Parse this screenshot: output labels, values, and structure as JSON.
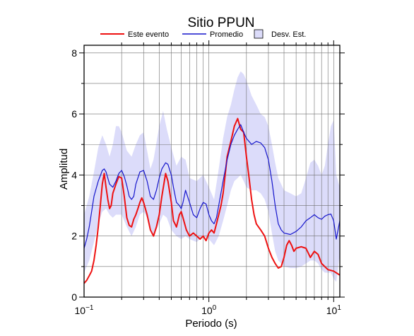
{
  "chart_data": {
    "type": "line",
    "title": "Sitio PPUN",
    "xlabel": "Periodo (s)",
    "ylabel": "Amplitud",
    "xscale": "log",
    "xlim": [
      0.1,
      11.2
    ],
    "ylim": [
      0,
      8.25
    ],
    "grid": true,
    "legend_position": "top",
    "x_ticks": [
      {
        "value": 0.1,
        "base": "10",
        "exp": "−1"
      },
      {
        "value": 1,
        "base": "10",
        "exp": "0"
      },
      {
        "value": 10,
        "base": "10",
        "exp": "1"
      }
    ],
    "y_ticks": [
      0,
      2,
      4,
      6,
      8
    ],
    "legend": {
      "este": "Este evento",
      "promedio": "Promedio",
      "desv": "Desv. Est."
    },
    "colors": {
      "este": "#ee1111",
      "promedio": "#1515cc",
      "desv": "#dcdcfa"
    },
    "series": [
      {
        "name": "Este evento",
        "points": [
          [
            0.1,
            0.45
          ],
          [
            0.105,
            0.55
          ],
          [
            0.11,
            0.7
          ],
          [
            0.115,
            0.85
          ],
          [
            0.12,
            1.2
          ],
          [
            0.125,
            1.7
          ],
          [
            0.13,
            2.3
          ],
          [
            0.135,
            3.0
          ],
          [
            0.14,
            3.7
          ],
          [
            0.145,
            4.05
          ],
          [
            0.15,
            3.6
          ],
          [
            0.155,
            3.2
          ],
          [
            0.16,
            2.9
          ],
          [
            0.165,
            3.0
          ],
          [
            0.17,
            3.4
          ],
          [
            0.18,
            3.7
          ],
          [
            0.19,
            3.95
          ],
          [
            0.2,
            3.9
          ],
          [
            0.21,
            3.3
          ],
          [
            0.22,
            2.6
          ],
          [
            0.23,
            2.35
          ],
          [
            0.24,
            2.3
          ],
          [
            0.25,
            2.55
          ],
          [
            0.26,
            2.7
          ],
          [
            0.27,
            2.9
          ],
          [
            0.28,
            3.1
          ],
          [
            0.29,
            3.25
          ],
          [
            0.3,
            3.1
          ],
          [
            0.32,
            2.7
          ],
          [
            0.34,
            2.2
          ],
          [
            0.36,
            2.0
          ],
          [
            0.38,
            2.3
          ],
          [
            0.4,
            2.7
          ],
          [
            0.42,
            3.3
          ],
          [
            0.45,
            4.05
          ],
          [
            0.47,
            3.8
          ],
          [
            0.5,
            3.1
          ],
          [
            0.52,
            2.5
          ],
          [
            0.55,
            2.3
          ],
          [
            0.58,
            2.7
          ],
          [
            0.6,
            2.8
          ],
          [
            0.62,
            2.6
          ],
          [
            0.66,
            2.2
          ],
          [
            0.7,
            2.0
          ],
          [
            0.75,
            2.1
          ],
          [
            0.8,
            2.0
          ],
          [
            0.85,
            1.9
          ],
          [
            0.9,
            2.0
          ],
          [
            0.95,
            1.85
          ],
          [
            1.0,
            2.1
          ],
          [
            1.05,
            2.2
          ],
          [
            1.1,
            2.1
          ],
          [
            1.15,
            2.4
          ],
          [
            1.2,
            2.7
          ],
          [
            1.25,
            3.0
          ],
          [
            1.3,
            3.4
          ],
          [
            1.35,
            4.0
          ],
          [
            1.4,
            4.6
          ],
          [
            1.5,
            5.1
          ],
          [
            1.6,
            5.6
          ],
          [
            1.7,
            5.85
          ],
          [
            1.8,
            5.5
          ],
          [
            1.9,
            5.4
          ],
          [
            2.0,
            4.6
          ],
          [
            2.1,
            3.9
          ],
          [
            2.2,
            3.2
          ],
          [
            2.3,
            2.7
          ],
          [
            2.4,
            2.4
          ],
          [
            2.6,
            2.2
          ],
          [
            2.8,
            2.0
          ],
          [
            3.0,
            1.6
          ],
          [
            3.2,
            1.3
          ],
          [
            3.4,
            1.1
          ],
          [
            3.6,
            0.95
          ],
          [
            3.8,
            1.0
          ],
          [
            4.0,
            1.3
          ],
          [
            4.2,
            1.7
          ],
          [
            4.4,
            1.85
          ],
          [
            4.6,
            1.7
          ],
          [
            4.8,
            1.5
          ],
          [
            5.0,
            1.6
          ],
          [
            5.5,
            1.65
          ],
          [
            6.0,
            1.6
          ],
          [
            6.5,
            1.3
          ],
          [
            7.0,
            1.5
          ],
          [
            7.5,
            1.4
          ],
          [
            8.0,
            1.1
          ],
          [
            9.0,
            0.9
          ],
          [
            10.0,
            0.85
          ],
          [
            11.2,
            0.72
          ]
        ]
      },
      {
        "name": "Promedio",
        "points": [
          [
            0.1,
            1.6
          ],
          [
            0.105,
            1.9
          ],
          [
            0.11,
            2.3
          ],
          [
            0.115,
            2.8
          ],
          [
            0.12,
            3.3
          ],
          [
            0.13,
            3.8
          ],
          [
            0.14,
            4.15
          ],
          [
            0.145,
            4.2
          ],
          [
            0.15,
            4.1
          ],
          [
            0.16,
            3.7
          ],
          [
            0.17,
            3.6
          ],
          [
            0.18,
            3.8
          ],
          [
            0.19,
            4.05
          ],
          [
            0.2,
            4.15
          ],
          [
            0.21,
            3.95
          ],
          [
            0.22,
            3.65
          ],
          [
            0.23,
            3.3
          ],
          [
            0.24,
            3.2
          ],
          [
            0.25,
            3.3
          ],
          [
            0.26,
            3.7
          ],
          [
            0.28,
            4.1
          ],
          [
            0.3,
            4.15
          ],
          [
            0.32,
            3.8
          ],
          [
            0.34,
            3.3
          ],
          [
            0.36,
            3.2
          ],
          [
            0.38,
            3.5
          ],
          [
            0.4,
            3.9
          ],
          [
            0.42,
            4.2
          ],
          [
            0.45,
            4.4
          ],
          [
            0.47,
            4.35
          ],
          [
            0.5,
            4.0
          ],
          [
            0.52,
            3.6
          ],
          [
            0.55,
            3.1
          ],
          [
            0.58,
            3.0
          ],
          [
            0.6,
            2.9
          ],
          [
            0.62,
            3.1
          ],
          [
            0.65,
            3.5
          ],
          [
            0.7,
            3.1
          ],
          [
            0.75,
            2.7
          ],
          [
            0.8,
            2.6
          ],
          [
            0.85,
            2.9
          ],
          [
            0.9,
            3.1
          ],
          [
            0.95,
            3.05
          ],
          [
            1.0,
            2.7
          ],
          [
            1.05,
            2.5
          ],
          [
            1.1,
            2.4
          ],
          [
            1.15,
            2.6
          ],
          [
            1.2,
            3.0
          ],
          [
            1.3,
            3.8
          ],
          [
            1.4,
            4.5
          ],
          [
            1.5,
            5.0
          ],
          [
            1.6,
            5.3
          ],
          [
            1.7,
            5.5
          ],
          [
            1.8,
            5.65
          ],
          [
            1.9,
            5.4
          ],
          [
            2.0,
            5.2
          ],
          [
            2.2,
            5.0
          ],
          [
            2.4,
            5.1
          ],
          [
            2.6,
            5.05
          ],
          [
            2.8,
            4.9
          ],
          [
            3.0,
            4.5
          ],
          [
            3.2,
            3.8
          ],
          [
            3.4,
            3.0
          ],
          [
            3.6,
            2.4
          ],
          [
            3.8,
            2.2
          ],
          [
            4.0,
            2.1
          ],
          [
            4.5,
            2.05
          ],
          [
            5.0,
            2.15
          ],
          [
            5.5,
            2.3
          ],
          [
            6.0,
            2.5
          ],
          [
            6.5,
            2.6
          ],
          [
            7.0,
            2.7
          ],
          [
            7.5,
            2.6
          ],
          [
            8.0,
            2.55
          ],
          [
            8.5,
            2.65
          ],
          [
            9.0,
            2.7
          ],
          [
            9.5,
            2.72
          ],
          [
            10.0,
            2.5
          ],
          [
            10.5,
            1.9
          ],
          [
            11.2,
            2.5
          ]
        ]
      }
    ],
    "band": {
      "name": "Desv. Est.",
      "upper": [
        [
          0.1,
          2.7
        ],
        [
          0.11,
          3.3
        ],
        [
          0.12,
          4.1
        ],
        [
          0.13,
          4.9
        ],
        [
          0.14,
          5.3
        ],
        [
          0.15,
          5.0
        ],
        [
          0.16,
          4.6
        ],
        [
          0.17,
          5.0
        ],
        [
          0.18,
          5.6
        ],
        [
          0.19,
          5.6
        ],
        [
          0.2,
          5.4
        ],
        [
          0.22,
          4.8
        ],
        [
          0.24,
          4.6
        ],
        [
          0.26,
          5.0
        ],
        [
          0.28,
          5.3
        ],
        [
          0.3,
          5.4
        ],
        [
          0.32,
          4.8
        ],
        [
          0.34,
          4.2
        ],
        [
          0.36,
          4.5
        ],
        [
          0.4,
          5.6
        ],
        [
          0.43,
          6.1
        ],
        [
          0.46,
          5.5
        ],
        [
          0.5,
          4.9
        ],
        [
          0.55,
          4.3
        ],
        [
          0.6,
          4.6
        ],
        [
          0.65,
          4.5
        ],
        [
          0.7,
          3.9
        ],
        [
          0.8,
          3.8
        ],
        [
          0.9,
          4.0
        ],
        [
          1.0,
          3.6
        ],
        [
          1.1,
          3.2
        ],
        [
          1.2,
          4.2
        ],
        [
          1.3,
          5.2
        ],
        [
          1.4,
          5.9
        ],
        [
          1.5,
          6.3
        ],
        [
          1.6,
          6.8
        ],
        [
          1.7,
          7.2
        ],
        [
          1.8,
          7.4
        ],
        [
          1.9,
          7.3
        ],
        [
          2.0,
          7.1
        ],
        [
          2.2,
          6.6
        ],
        [
          2.4,
          6.3
        ],
        [
          2.6,
          6.0
        ],
        [
          2.8,
          5.9
        ],
        [
          3.0,
          5.6
        ],
        [
          3.2,
          5.0
        ],
        [
          3.4,
          4.4
        ],
        [
          3.6,
          3.9
        ],
        [
          4.0,
          3.5
        ],
        [
          4.5,
          3.4
        ],
        [
          5.0,
          3.3
        ],
        [
          5.5,
          3.4
        ],
        [
          6.0,
          3.9
        ],
        [
          6.5,
          4.4
        ],
        [
          7.0,
          4.5
        ],
        [
          7.5,
          4.3
        ],
        [
          8.0,
          4.0
        ],
        [
          8.5,
          4.3
        ],
        [
          9.0,
          5.0
        ],
        [
          9.5,
          5.6
        ],
        [
          10.0,
          5.8
        ],
        [
          10.5,
          4.0
        ],
        [
          11.2,
          3.6
        ]
      ],
      "lower": [
        [
          0.1,
          0.8
        ],
        [
          0.11,
          1.2
        ],
        [
          0.12,
          1.8
        ],
        [
          0.13,
          2.4
        ],
        [
          0.14,
          2.8
        ],
        [
          0.15,
          2.9
        ],
        [
          0.16,
          2.7
        ],
        [
          0.17,
          2.6
        ],
        [
          0.18,
          2.7
        ],
        [
          0.2,
          2.7
        ],
        [
          0.22,
          2.3
        ],
        [
          0.24,
          2.0
        ],
        [
          0.26,
          2.3
        ],
        [
          0.28,
          2.7
        ],
        [
          0.3,
          2.8
        ],
        [
          0.32,
          2.6
        ],
        [
          0.34,
          2.3
        ],
        [
          0.36,
          2.0
        ],
        [
          0.4,
          2.4
        ],
        [
          0.43,
          2.7
        ],
        [
          0.46,
          2.6
        ],
        [
          0.5,
          2.2
        ],
        [
          0.55,
          2.0
        ],
        [
          0.6,
          1.9
        ],
        [
          0.65,
          2.0
        ],
        [
          0.7,
          1.9
        ],
        [
          0.8,
          1.8
        ],
        [
          0.9,
          2.0
        ],
        [
          1.0,
          1.9
        ],
        [
          1.1,
          1.7
        ],
        [
          1.2,
          2.0
        ],
        [
          1.3,
          2.5
        ],
        [
          1.4,
          3.0
        ],
        [
          1.5,
          3.5
        ],
        [
          1.6,
          3.8
        ],
        [
          1.7,
          3.9
        ],
        [
          1.8,
          4.0
        ],
        [
          1.9,
          3.8
        ],
        [
          2.0,
          3.6
        ],
        [
          2.2,
          3.5
        ],
        [
          2.4,
          3.5
        ],
        [
          2.6,
          3.4
        ],
        [
          2.8,
          3.2
        ],
        [
          3.0,
          2.8
        ],
        [
          3.2,
          2.1
        ],
        [
          3.4,
          1.5
        ],
        [
          3.6,
          1.2
        ],
        [
          4.0,
          1.0
        ],
        [
          4.5,
          0.95
        ],
        [
          5.0,
          0.95
        ],
        [
          5.5,
          1.0
        ],
        [
          6.0,
          1.1
        ],
        [
          6.5,
          1.2
        ],
        [
          7.0,
          1.2
        ],
        [
          7.5,
          1.1
        ],
        [
          8.0,
          0.9
        ],
        [
          8.5,
          0.8
        ],
        [
          9.0,
          0.8
        ],
        [
          9.5,
          0.8
        ],
        [
          10.0,
          0.6
        ],
        [
          10.5,
          0.5
        ],
        [
          11.2,
          1.4
        ]
      ]
    }
  }
}
